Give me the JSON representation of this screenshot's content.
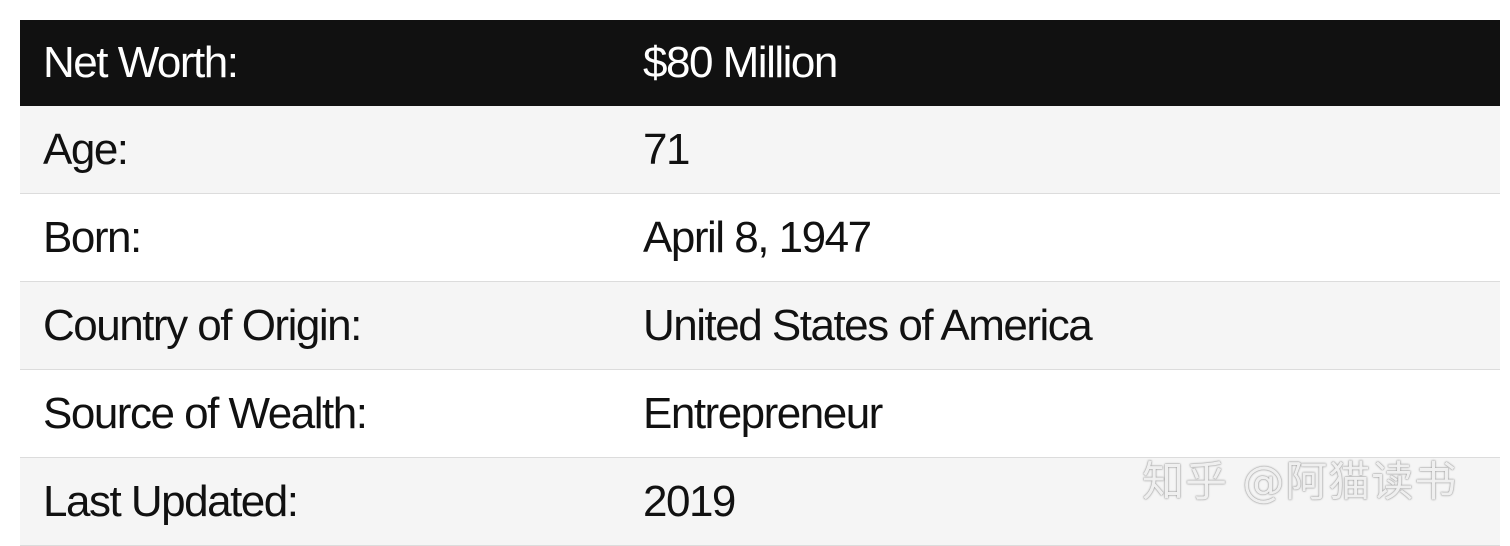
{
  "table": {
    "header": [
      "Net Worth:",
      "$80 Million"
    ],
    "rows": [
      [
        "Age:",
        "71"
      ],
      [
        "Born:",
        "April 8, 1947"
      ],
      [
        "Country of Origin:",
        "United States of America"
      ],
      [
        "Source of Wealth:",
        "Entrepreneur"
      ],
      [
        "Last Updated:",
        "2019"
      ]
    ]
  },
  "watermark": "知乎 @阿猫读书"
}
